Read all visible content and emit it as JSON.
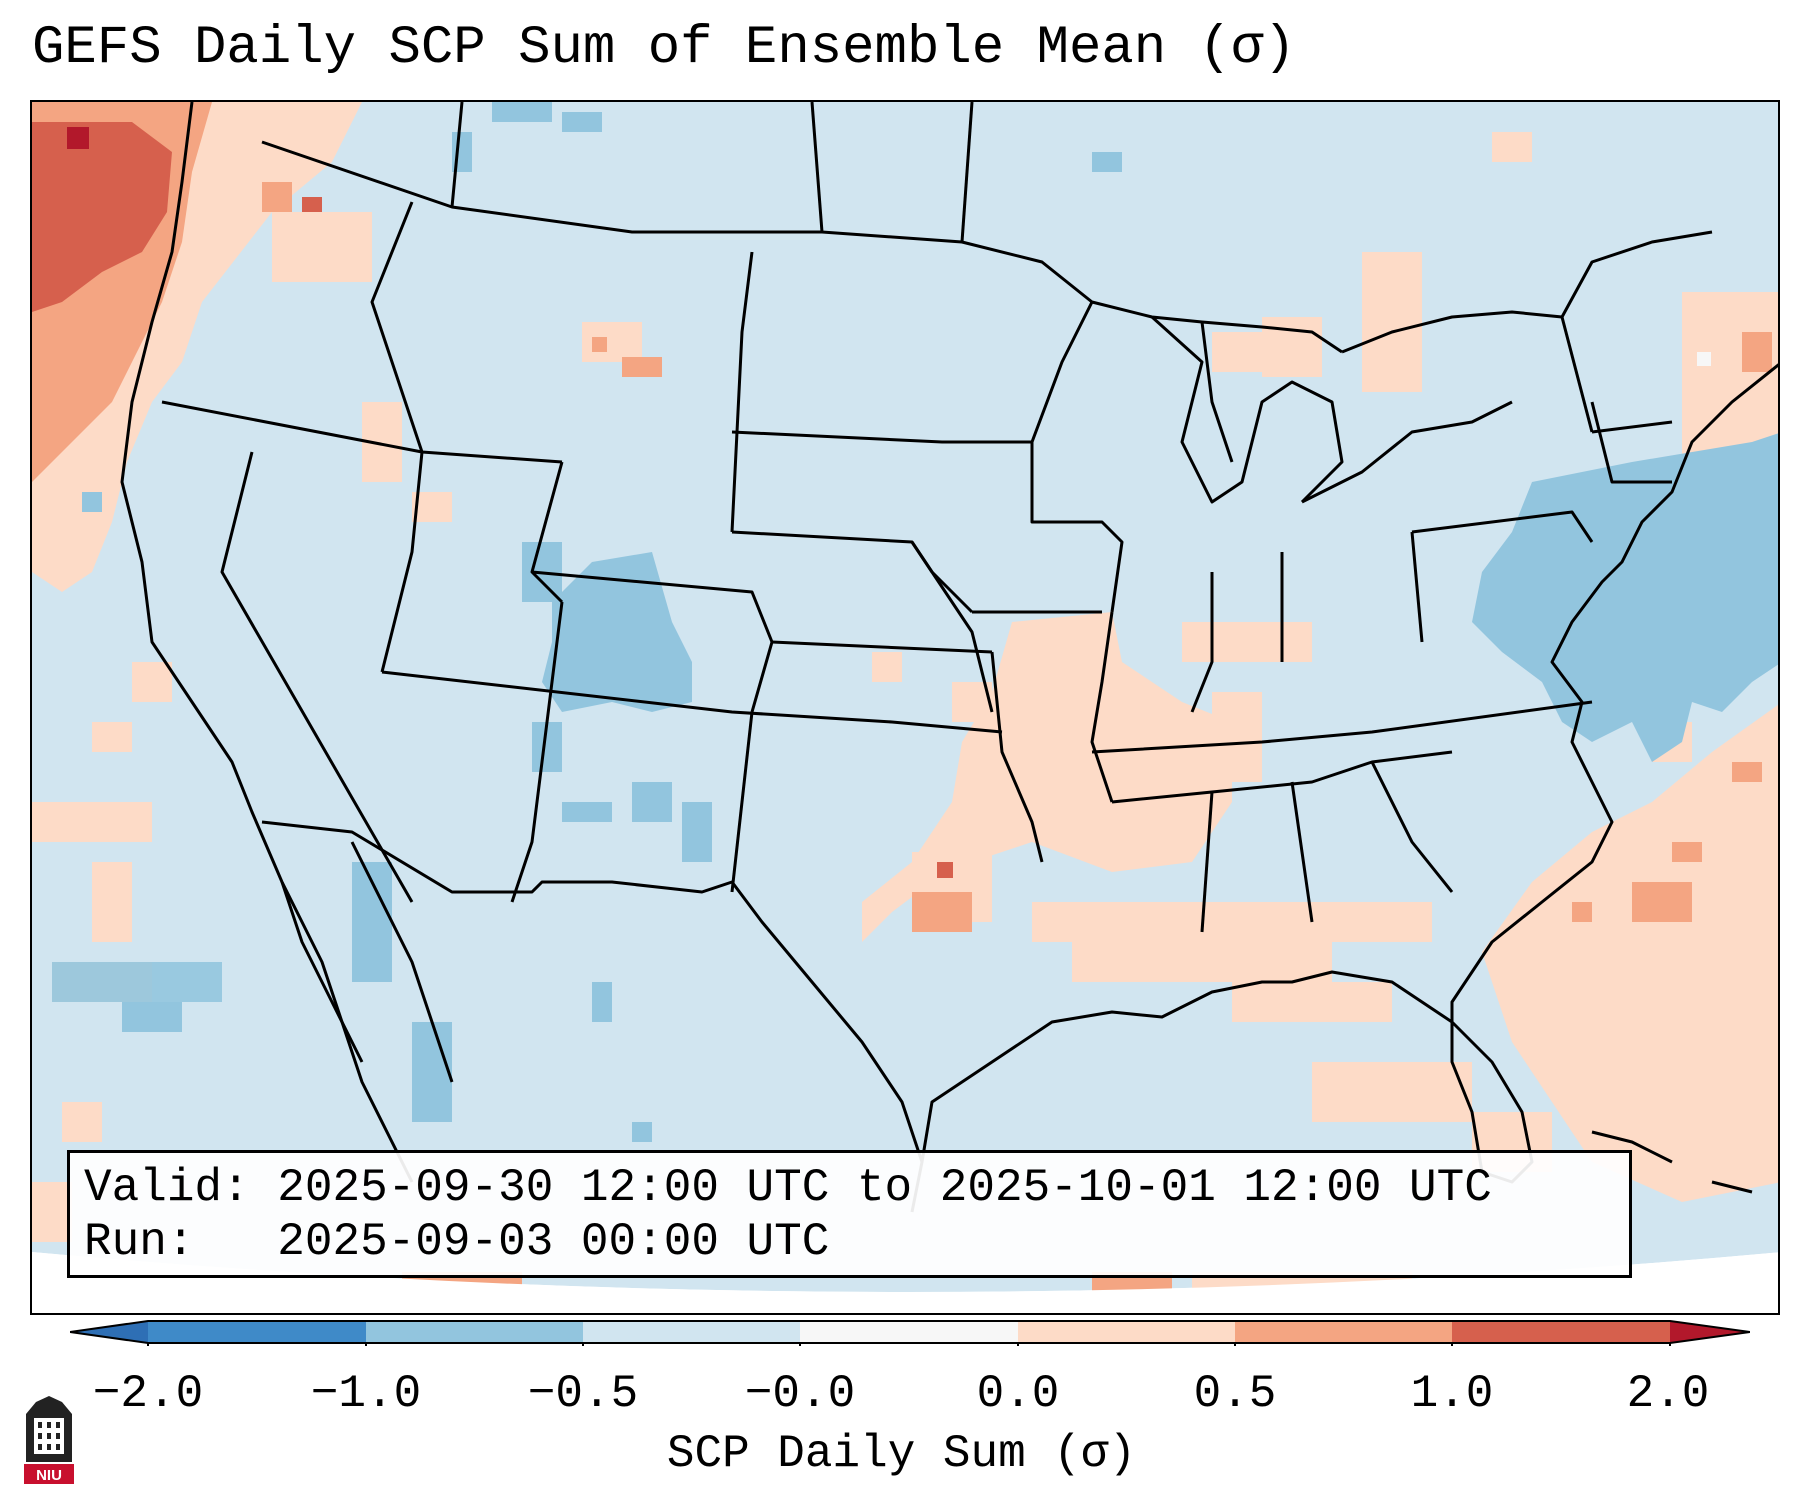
{
  "title": "GEFS Daily SCP Sum of Ensemble Mean (σ)",
  "info": {
    "valid_label": "Valid:",
    "valid_value": "2025-09-30 12:00 UTC to 2025-10-01 12:00 UTC",
    "run_label": "Run:",
    "run_value": "2025-09-03 00:00 UTC"
  },
  "colorbar": {
    "label": "SCP Daily Sum (σ)",
    "ticks": [
      "−2.0",
      "−1.0",
      "−0.5",
      "−0.0",
      "0.0",
      "0.5",
      "1.0",
      "2.0"
    ],
    "bins": [
      {
        "range": "< -2.0",
        "color": "#2e6fb5"
      },
      {
        "range": "-2.0 to -1.0",
        "color": "#3f8ac8"
      },
      {
        "range": "-1.0 to -0.5",
        "color": "#92c5de"
      },
      {
        "range": "-0.5 to -0.0",
        "color": "#d1e5f0"
      },
      {
        "range": "-0.0 to 0.0",
        "color": "#f7f7f7"
      },
      {
        "range": "0.0 to 0.5",
        "color": "#fddbc7"
      },
      {
        "range": "0.5 to 1.0",
        "color": "#f4a582"
      },
      {
        "range": "1.0 to 2.0",
        "color": "#d6604d"
      },
      {
        "range": "> 2.0",
        "color": "#b2182b"
      }
    ]
  },
  "logo": {
    "text": "NIU",
    "color": "#c8102e"
  }
}
